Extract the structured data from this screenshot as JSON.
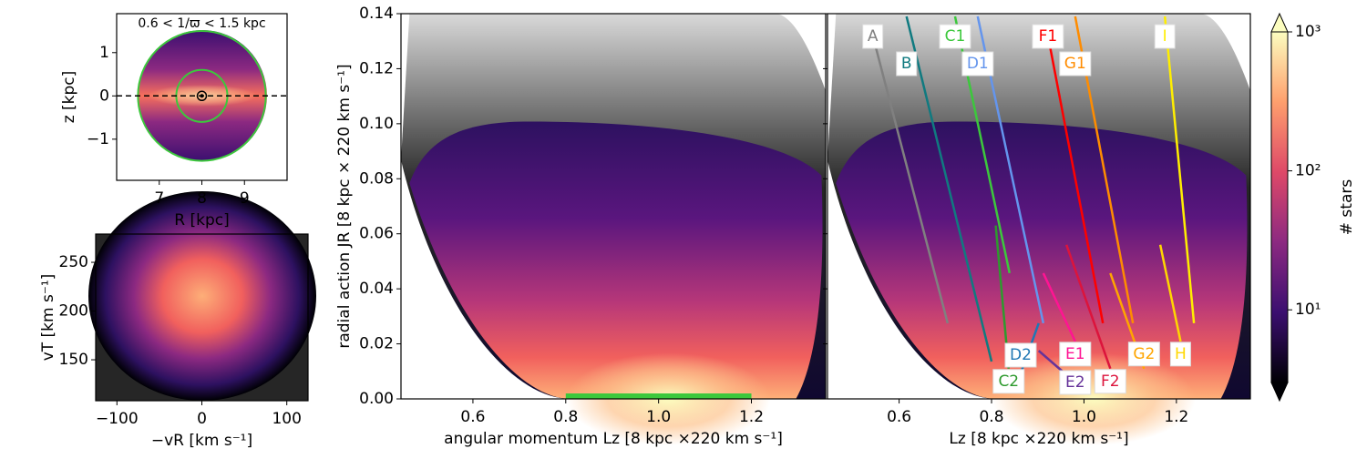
{
  "chart_data": [
    {
      "type": "heatmap",
      "xlabel": "R [kpc]",
      "ylabel": "z [kpc]",
      "annotation": "0.6 < 1/ϖ < 1.5 kpc",
      "xlim": [
        6.0,
        10.0
      ],
      "ylim": [
        -1.95,
        1.9
      ],
      "xticks": [
        7,
        8,
        9
      ],
      "yticks": [
        {
          "value": -1,
          "label": "−1"
        },
        0,
        1
      ],
      "rings": [
        0.6,
        1.5
      ],
      "ring_color": "#3cc83c",
      "center": [
        8,
        0
      ]
    },
    {
      "type": "heatmap",
      "xlabel": "−vR [km s⁻¹]",
      "ylabel": "vT [km s⁻¹]",
      "xlim": [
        -125,
        125
      ],
      "ylim": [
        108,
        279
      ],
      "xticks": [
        {
          "value": -100,
          "label": "−100"
        },
        0,
        100
      ],
      "yticks": [
        150,
        200,
        250
      ]
    },
    {
      "type": "heatmap",
      "xlabel": "angular momentum Lz [8 kpc ×220 km s⁻¹]",
      "ylabel": "radial action JR [8 kpc × 220 km s⁻¹]",
      "xlim": [
        0.445,
        1.36
      ],
      "ylim": [
        0,
        0.14
      ],
      "xticks": [
        0.6,
        0.8,
        {
          "value": 1,
          "label": "1.0"
        },
        1.2
      ],
      "yticks": [
        {
          "value": 0,
          "label": "0.00"
        },
        {
          "value": 0.02,
          "label": "0.02"
        },
        {
          "value": 0.04,
          "label": "0.04"
        },
        {
          "value": 0.06,
          "label": "0.06"
        },
        {
          "value": 0.08,
          "label": "0.08"
        },
        {
          "value": 0.1,
          "label": "0.10"
        },
        {
          "value": 0.12,
          "label": "0.12"
        },
        {
          "value": 0.14,
          "label": "0.14"
        }
      ],
      "highlight": {
        "x": [
          0.8,
          1.2
        ],
        "color": "#3cc83c"
      }
    },
    {
      "type": "ridges",
      "xlabel": "Lz [8 kpc ×220 km s⁻¹]",
      "xlim": [
        0.445,
        1.36
      ],
      "ylim": [
        0,
        0.14
      ],
      "xticks": [
        0.6,
        0.8,
        {
          "value": 1,
          "label": "1.0"
        },
        1.2
      ],
      "yticks": [
        0,
        0.02,
        0.04,
        0.06,
        0.08,
        0.1,
        0.12,
        0.14
      ],
      "series": [
        {
          "name": "A",
          "color": "#808080",
          "x": [
            0.543,
            0.705
          ],
          "values": [
            0.132,
            0.0275
          ]
        },
        {
          "name": "B",
          "color": "#107a80",
          "x": [
            0.616,
            0.8
          ],
          "values": [
            0.139,
            0.0136
          ]
        },
        {
          "name": "C1",
          "color": "#3cc83c",
          "x": [
            0.721,
            0.839
          ],
          "values": [
            0.139,
            0.0457
          ]
        },
        {
          "name": "C2",
          "color": "#2e9a2e",
          "x": [
            0.809,
            0.837
          ],
          "values": [
            0.063,
            0.011
          ]
        },
        {
          "name": "D1",
          "color": "#6495ed",
          "x": [
            0.77,
            0.912
          ],
          "values": [
            0.139,
            0.0275
          ]
        },
        {
          "name": "D2",
          "color": "#1f77b4",
          "x": [
            0.902,
            0.863
          ],
          "values": [
            0.0275,
            0.0093
          ]
        },
        {
          "name": "E1",
          "color": "#ff1493",
          "x": [
            0.912,
            0.981
          ],
          "values": [
            0.0457,
            0.0209
          ]
        },
        {
          "name": "E2",
          "color": "#663399",
          "x": [
            0.902,
            0.981
          ],
          "values": [
            0.0175,
            0.006
          ]
        },
        {
          "name": "F1",
          "color": "#ff0000",
          "x": [
            0.922,
            1.041
          ],
          "values": [
            0.132,
            0.0275
          ]
        },
        {
          "name": "F2",
          "color": "#dc143c",
          "x": [
            0.962,
            1.057
          ],
          "values": [
            0.056,
            0.011
          ]
        },
        {
          "name": "G1",
          "color": "#ff8c00",
          "x": [
            0.981,
            1.106
          ],
          "values": [
            0.139,
            0.0275
          ]
        },
        {
          "name": "G2",
          "color": "#ffa500",
          "x": [
            1.057,
            1.13
          ],
          "values": [
            0.0457,
            0.011
          ]
        },
        {
          "name": "H",
          "color": "#ffd700",
          "x": [
            1.165,
            1.209
          ],
          "values": [
            0.056,
            0.0209
          ]
        },
        {
          "name": "I",
          "color": "#ffee00",
          "x": [
            1.175,
            1.238
          ],
          "values": [
            0.139,
            0.0275
          ]
        }
      ],
      "colorbar": {
        "label": "# stars",
        "lim": [
          3,
          1000
        ],
        "log": true,
        "colormap": "magma",
        "extend": "both",
        "ticks": [
          {
            "value": 10,
            "label": "10¹"
          },
          {
            "value": 100,
            "label": "10²"
          },
          {
            "value": 1000,
            "label": "10³"
          }
        ]
      }
    }
  ]
}
